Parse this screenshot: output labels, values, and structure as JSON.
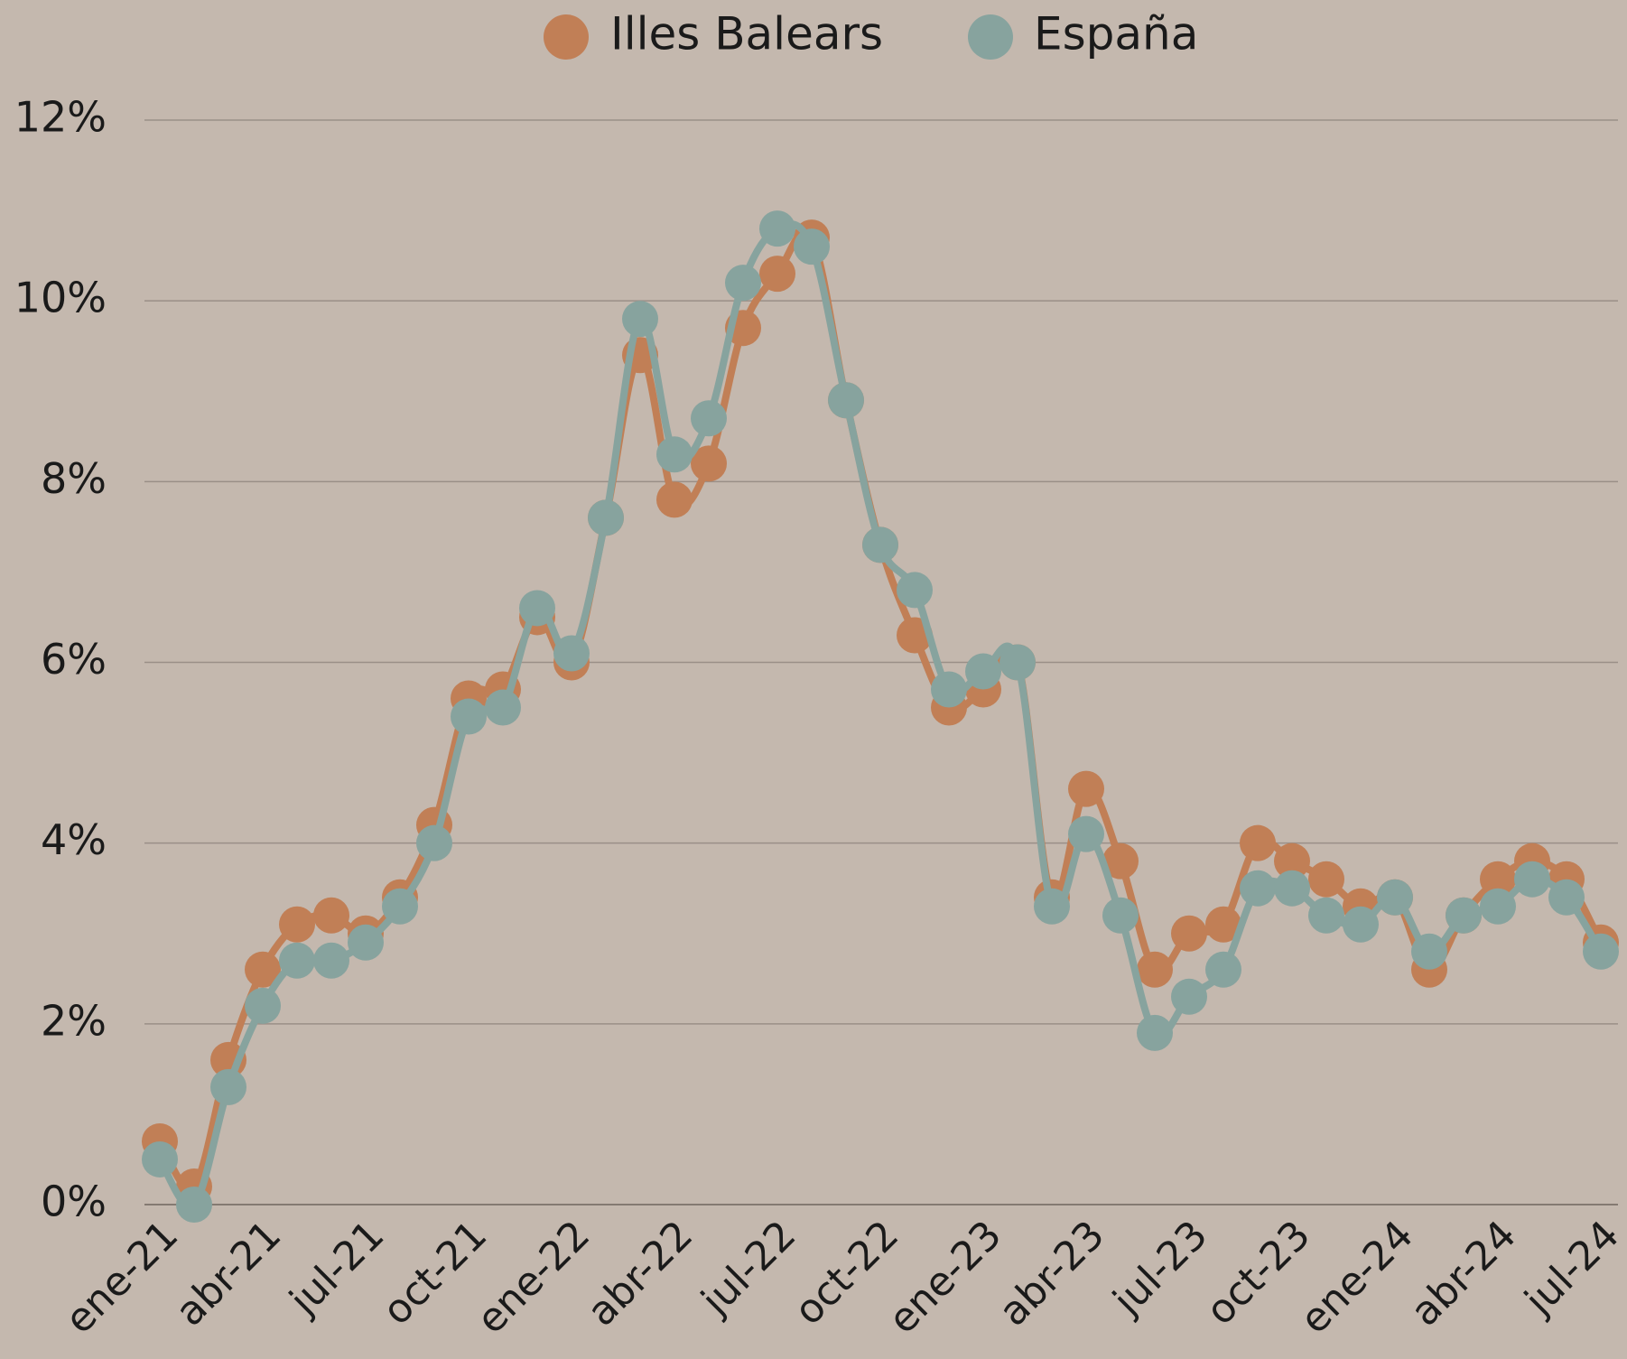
{
  "chart_data": {
    "type": "line",
    "categories": [
      "ene-21",
      null,
      null,
      "abr-21",
      null,
      null,
      "jul-21",
      null,
      null,
      "oct-21",
      null,
      null,
      "ene-22",
      null,
      null,
      "abr-22",
      null,
      null,
      "jul-22",
      null,
      null,
      "oct-22",
      null,
      null,
      "ene-23",
      null,
      null,
      "abr-23",
      null,
      null,
      "jul-23",
      null,
      null,
      "oct-23",
      null,
      null,
      "ene-24",
      null,
      null,
      "abr-24",
      null,
      null,
      "jul-24"
    ],
    "series": [
      {
        "name": "Illes Balears",
        "color": "#c17f56",
        "values": [
          0.7,
          0.2,
          1.6,
          2.6,
          3.1,
          3.2,
          3.0,
          3.4,
          4.2,
          5.6,
          5.7,
          6.5,
          6.0,
          7.6,
          9.4,
          7.8,
          8.2,
          9.7,
          10.3,
          10.7,
          8.9,
          7.3,
          6.3,
          5.5,
          5.7,
          6.0,
          3.4,
          4.6,
          3.8,
          2.6,
          3.0,
          3.1,
          4.0,
          3.8,
          3.6,
          3.3,
          3.4,
          2.6,
          3.2,
          3.6,
          3.8,
          3.6,
          2.9
        ]
      },
      {
        "name": "España",
        "color": "#87a39e",
        "values": [
          0.5,
          0.0,
          1.3,
          2.2,
          2.7,
          2.7,
          2.9,
          3.3,
          4.0,
          5.4,
          5.5,
          6.6,
          6.1,
          7.6,
          9.8,
          8.3,
          8.7,
          10.2,
          10.8,
          10.6,
          8.9,
          7.3,
          6.8,
          5.7,
          5.9,
          6.0,
          3.3,
          4.1,
          3.2,
          1.9,
          2.3,
          2.6,
          3.5,
          3.5,
          3.2,
          3.1,
          3.4,
          2.8,
          3.2,
          3.3,
          3.6,
          3.4,
          2.8
        ]
      }
    ],
    "ylim": [
      0,
      12
    ],
    "yticks": [
      {
        "value": 0,
        "label": "0%"
      },
      {
        "value": 2,
        "label": "2%"
      },
      {
        "value": 4,
        "label": "4%"
      },
      {
        "value": 6,
        "label": "6%"
      },
      {
        "value": 8,
        "label": "8%"
      },
      {
        "value": 10,
        "label": "10%"
      },
      {
        "value": 12,
        "label": "12%"
      }
    ],
    "grid": true,
    "legend": "top"
  }
}
